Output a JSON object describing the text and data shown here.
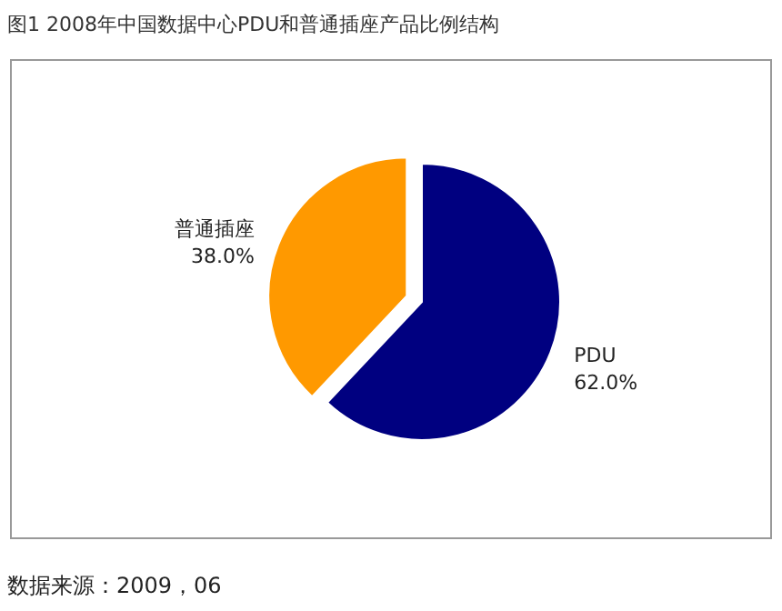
{
  "chart_data": {
    "type": "pie",
    "title": "图1 2008年中国数据中心PDU和普通插座产品比例结构",
    "categories": [
      "PDU",
      "普通插座"
    ],
    "values": [
      62,
      38
    ],
    "colors": [
      "#000080",
      "#ff9900"
    ],
    "value_labels": [
      "62.0%",
      "38.0%"
    ],
    "annotations": [
      "数据来源：2009，06"
    ]
  }
}
